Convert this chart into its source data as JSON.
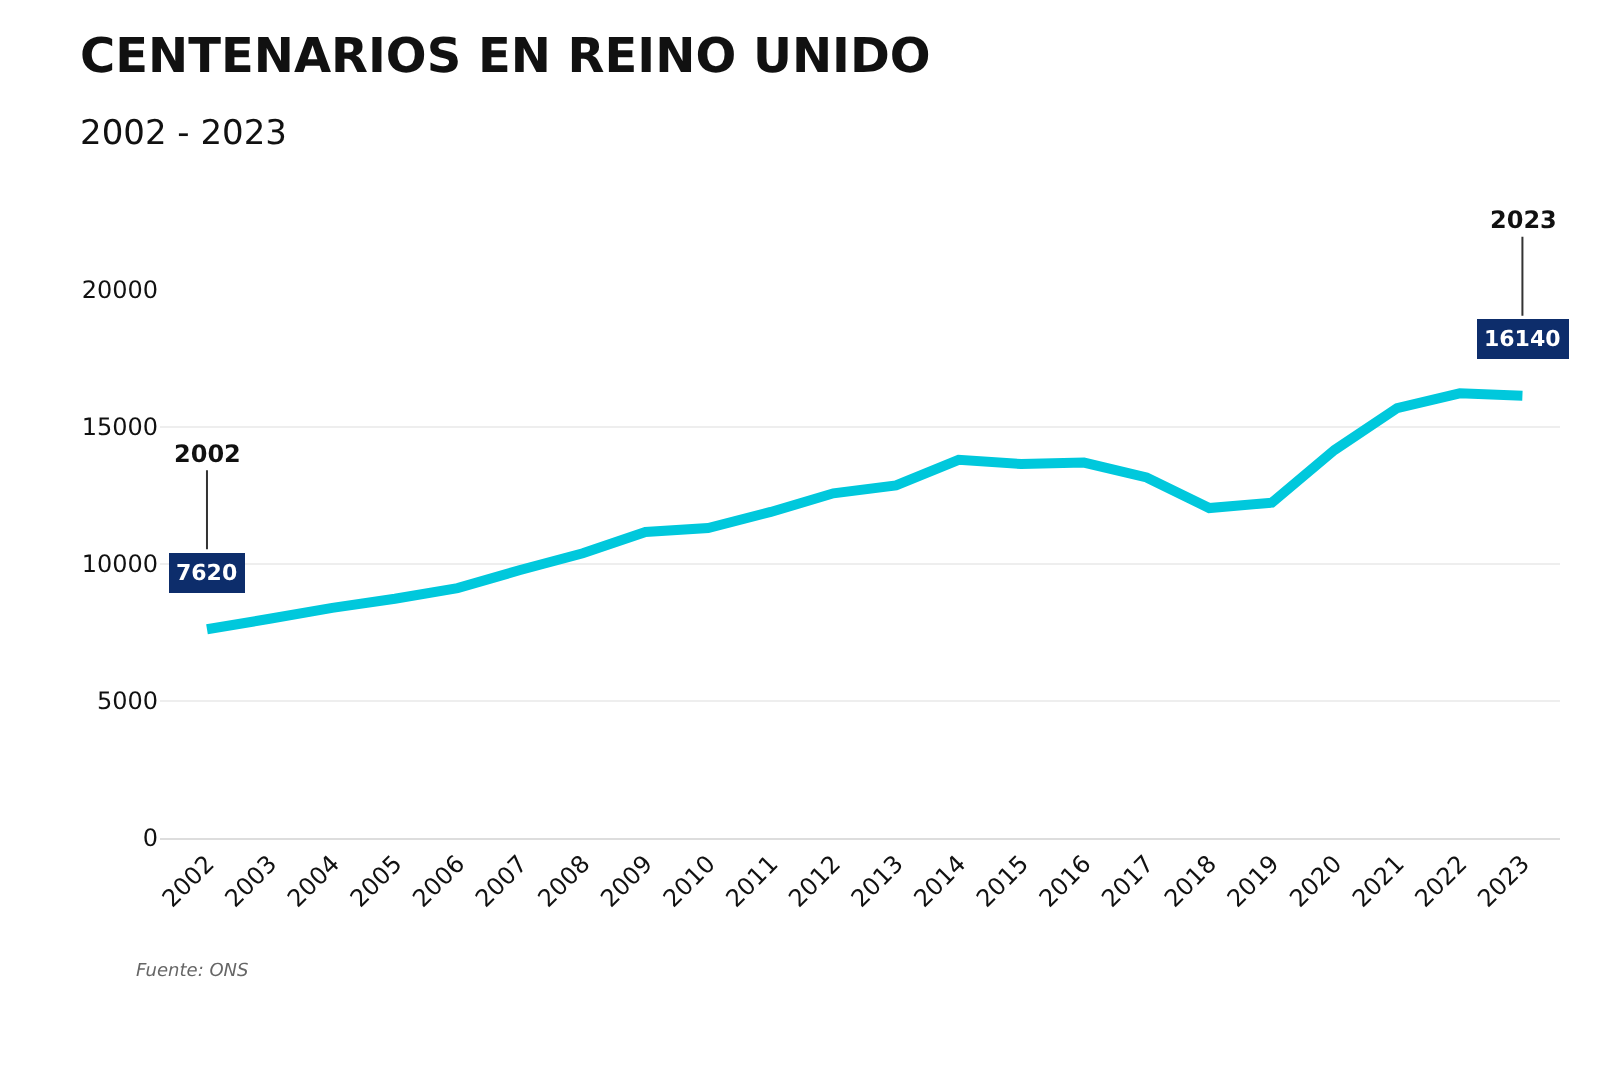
{
  "chart_data": {
    "type": "line",
    "title": "CENTENARIOS EN REINO UNIDO",
    "subtitle": "2002 - 2023",
    "categories": [
      "2002",
      "2003",
      "2004",
      "2005",
      "2006",
      "2007",
      "2008",
      "2009",
      "2010",
      "2011",
      "2012",
      "2013",
      "2014",
      "2015",
      "2016",
      "2017",
      "2018",
      "2019",
      "2020",
      "2021",
      "2022",
      "2023"
    ],
    "series": [
      {
        "color": "#00c8dc",
        "values": [
          7620,
          8000,
          8400,
          8730,
          9120,
          9780,
          10390,
          11170,
          11310,
          11900,
          12580,
          12870,
          13800,
          13650,
          13700,
          13160,
          12040,
          12240,
          14160,
          15690,
          16230,
          16140
        ]
      }
    ],
    "ylim": [
      0,
      20000
    ],
    "yticks": [
      0,
      5000,
      10000,
      15000,
      20000
    ],
    "grid": "y",
    "marker": "none",
    "line_style": "solid",
    "annotations": [
      {
        "text": "2002",
        "x": "2002",
        "y": 7620
      },
      {
        "text": "7620",
        "x": "2002",
        "y": 7620
      },
      {
        "text": "2023",
        "x": "2023",
        "y": 16140
      },
      {
        "text": "16140",
        "x": "2023",
        "y": 16140
      },
      "Fuente: ONS"
    ]
  }
}
